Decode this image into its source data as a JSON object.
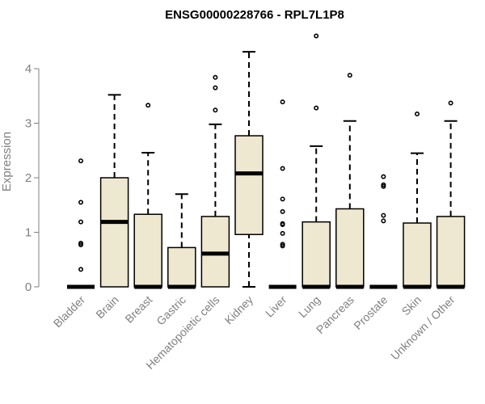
{
  "chart_data": {
    "type": "boxplot",
    "title": "ENSG00000228766 - RPL7L1P8",
    "ylabel": "Expression",
    "xlabel": "",
    "ylim": [
      0,
      4.6
    ],
    "yticks": [
      0,
      1,
      2,
      3,
      4
    ],
    "grid": false,
    "box_color": "#efe8d0",
    "line_color": "#000000",
    "categories": [
      "Bladder",
      "Brain",
      "Breast",
      "Gastric",
      "Hematopoietic cells",
      "Kidney",
      "Liver",
      "Lung",
      "Pancreas",
      "Prostate",
      "Skin",
      "Unknown / Other"
    ],
    "boxes": [
      {
        "q1": 0,
        "median": 0,
        "q3": 0,
        "whisker_low": 0,
        "whisker_high": 0,
        "outliers": [
          2.31,
          1.55,
          1.19,
          0.8,
          0.77,
          0.32
        ]
      },
      {
        "q1": 0,
        "median": 1.19,
        "q3": 2.0,
        "whisker_low": 0,
        "whisker_high": 3.52,
        "outliers": []
      },
      {
        "q1": 0,
        "median": 0,
        "q3": 1.33,
        "whisker_low": 0,
        "whisker_high": 2.46,
        "outliers": [
          3.33
        ]
      },
      {
        "q1": 0,
        "median": 0,
        "q3": 0.72,
        "whisker_low": 0,
        "whisker_high": 1.7,
        "outliers": []
      },
      {
        "q1": 0,
        "median": 0.61,
        "q3": 1.29,
        "whisker_low": 0,
        "whisker_high": 2.98,
        "outliers": [
          3.84,
          3.65,
          3.24
        ]
      },
      {
        "q1": 0.96,
        "median": 2.08,
        "q3": 2.77,
        "whisker_low": 0,
        "whisker_high": 4.31,
        "outliers": []
      },
      {
        "q1": 0,
        "median": 0,
        "q3": 0,
        "whisker_low": 0,
        "whisker_high": 0,
        "outliers": [
          3.39,
          2.17,
          1.61,
          1.38,
          1.16,
          1.14,
          0.98,
          0.78,
          0.75
        ]
      },
      {
        "q1": 0,
        "median": 0,
        "q3": 1.19,
        "whisker_low": 0,
        "whisker_high": 2.58,
        "outliers": [
          4.6,
          3.28
        ]
      },
      {
        "q1": 0,
        "median": 0,
        "q3": 1.43,
        "whisker_low": 0,
        "whisker_high": 3.04,
        "outliers": [
          3.88
        ]
      },
      {
        "q1": 0,
        "median": 0,
        "q3": 0,
        "whisker_low": 0,
        "whisker_high": 0,
        "outliers": [
          2.02,
          1.87,
          1.84,
          1.31,
          1.21
        ]
      },
      {
        "q1": 0,
        "median": 0,
        "q3": 1.17,
        "whisker_low": 0,
        "whisker_high": 2.45,
        "outliers": [
          3.17
        ]
      },
      {
        "q1": 0,
        "median": 0,
        "q3": 1.29,
        "whisker_low": 0,
        "whisker_high": 3.04,
        "outliers": [
          3.37
        ]
      }
    ]
  }
}
